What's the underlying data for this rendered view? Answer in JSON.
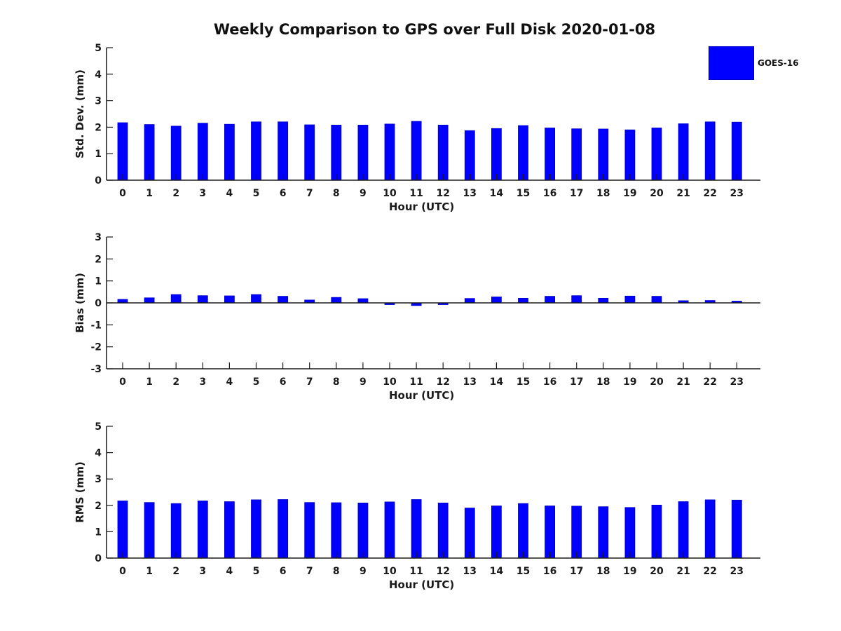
{
  "title": "Weekly Comparison to GPS over Full Disk 2020-01-08",
  "legend": {
    "label": "GOES-16",
    "color": "#0000ff"
  },
  "colors": {
    "bar_fill": "#0000ff",
    "bar_edge": "#0000cc",
    "axis": "#1a1a1a",
    "text": "#1a1a1a"
  },
  "chart_data": [
    {
      "type": "bar",
      "name": "std-dev-chart",
      "series_name": "GOES-16",
      "ylabel": "Std. Dev. (mm)",
      "xlabel": "Hour (UTC)",
      "categories": [
        0,
        1,
        2,
        3,
        4,
        5,
        6,
        7,
        8,
        9,
        10,
        11,
        12,
        13,
        14,
        15,
        16,
        17,
        18,
        19,
        20,
        21,
        22,
        23
      ],
      "values": [
        2.17,
        2.1,
        2.04,
        2.15,
        2.11,
        2.2,
        2.2,
        2.09,
        2.08,
        2.08,
        2.12,
        2.22,
        2.08,
        1.87,
        1.95,
        2.06,
        1.97,
        1.94,
        1.93,
        1.9,
        1.97,
        2.13,
        2.2,
        2.19
      ],
      "ylim": [
        0,
        5
      ],
      "yticks": [
        0,
        1,
        2,
        3,
        4,
        5
      ],
      "grid": false,
      "legend_position": "upper-right-outside"
    },
    {
      "type": "bar",
      "name": "bias-chart",
      "series_name": "GOES-16",
      "ylabel": "Bias (mm)",
      "xlabel": "Hour (UTC)",
      "categories": [
        0,
        1,
        2,
        3,
        4,
        5,
        6,
        7,
        8,
        9,
        10,
        11,
        12,
        13,
        14,
        15,
        16,
        17,
        18,
        19,
        20,
        21,
        22,
        23
      ],
      "values": [
        0.16,
        0.23,
        0.38,
        0.33,
        0.32,
        0.38,
        0.3,
        0.13,
        0.25,
        0.19,
        -0.08,
        -0.12,
        -0.08,
        0.2,
        0.27,
        0.21,
        0.3,
        0.33,
        0.21,
        0.31,
        0.3,
        0.1,
        0.11,
        0.08
      ],
      "ylim": [
        -3,
        3
      ],
      "yticks": [
        -3,
        -2,
        -1,
        0,
        1,
        2,
        3
      ],
      "grid": false
    },
    {
      "type": "bar",
      "name": "rms-chart",
      "series_name": "GOES-16",
      "ylabel": "RMS (mm)",
      "xlabel": "Hour (UTC)",
      "categories": [
        0,
        1,
        2,
        3,
        4,
        5,
        6,
        7,
        8,
        9,
        10,
        11,
        12,
        13,
        14,
        15,
        16,
        17,
        18,
        19,
        20,
        21,
        22,
        23
      ],
      "values": [
        2.17,
        2.11,
        2.07,
        2.17,
        2.14,
        2.21,
        2.22,
        2.11,
        2.1,
        2.09,
        2.13,
        2.22,
        2.09,
        1.9,
        1.98,
        2.07,
        1.98,
        1.97,
        1.95,
        1.92,
        2.01,
        2.14,
        2.21,
        2.2
      ],
      "ylim": [
        0,
        5
      ],
      "yticks": [
        0,
        1,
        2,
        3,
        4,
        5
      ],
      "grid": false
    }
  ]
}
